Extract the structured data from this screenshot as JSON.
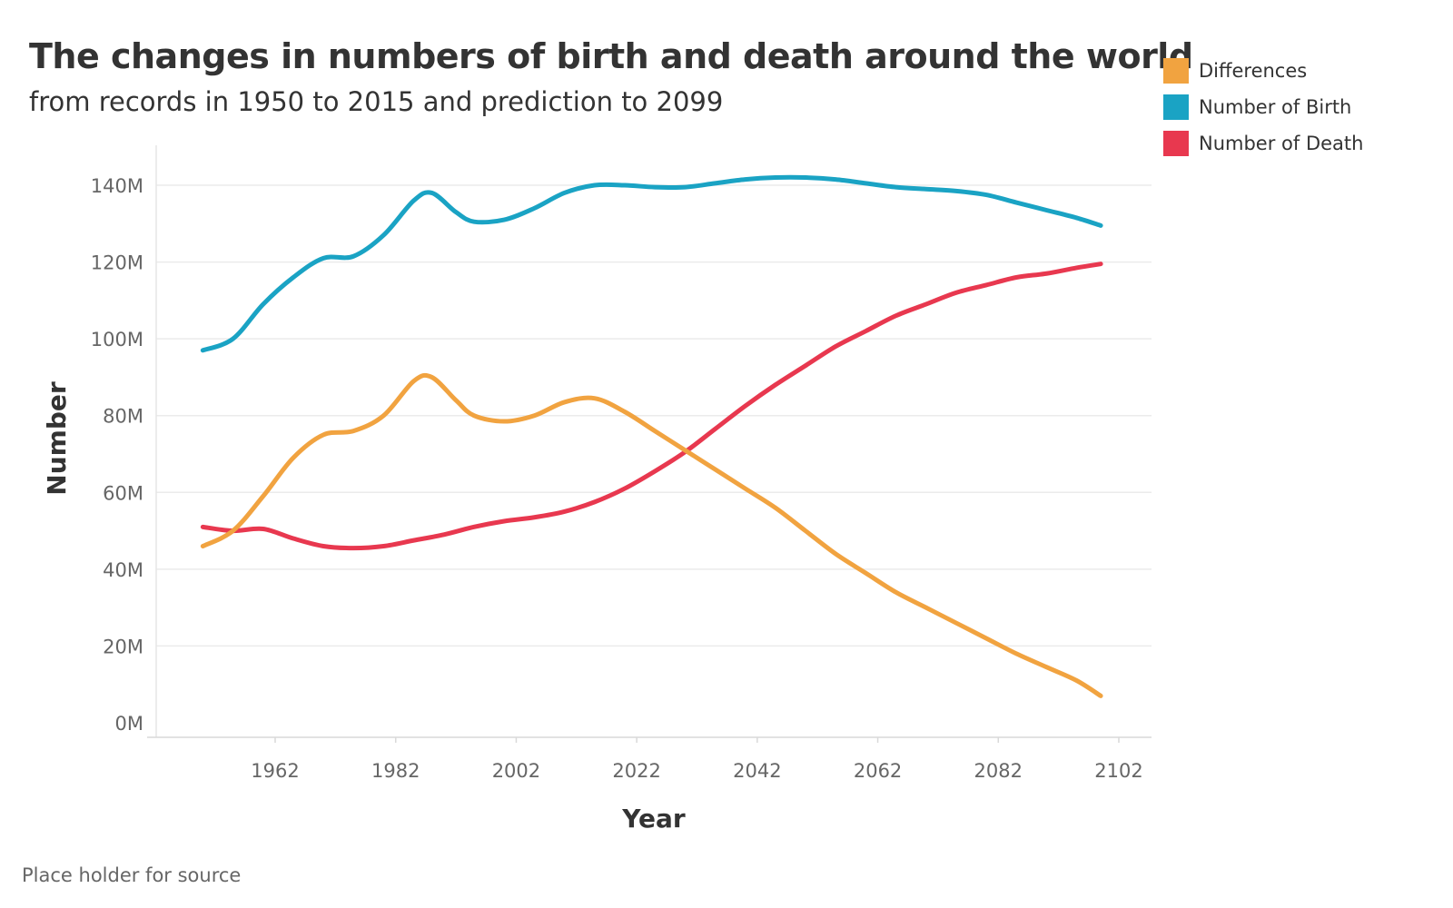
{
  "chart_data": {
    "type": "line",
    "title": "The changes in numbers of birth and death around the world",
    "subtitle": "from records in 1950 to 2015 and prediction to 2099",
    "xlabel": "Year",
    "ylabel": "Number",
    "source": "Place holder for source",
    "xlim": [
      1947,
      2104
    ],
    "ylim": [
      0,
      150000000
    ],
    "x_ticks": [
      1962,
      1982,
      2002,
      2022,
      2042,
      2062,
      2082,
      2102
    ],
    "y_ticks": [
      {
        "value": 0,
        "label": "0M"
      },
      {
        "value": 20000000,
        "label": "20M"
      },
      {
        "value": 40000000,
        "label": "40M"
      },
      {
        "value": 60000000,
        "label": "60M"
      },
      {
        "value": 80000000,
        "label": "80M"
      },
      {
        "value": 100000000,
        "label": "100M"
      },
      {
        "value": 120000000,
        "label": "120M"
      },
      {
        "value": 140000000,
        "label": "140M"
      }
    ],
    "grid": "horizontal",
    "legend_position": "top-right",
    "series": [
      {
        "name": "Differences",
        "color": "#f1a340",
        "points": [
          [
            1950,
            46000000
          ],
          [
            1955,
            50000000
          ],
          [
            1960,
            59000000
          ],
          [
            1965,
            69000000
          ],
          [
            1970,
            75000000
          ],
          [
            1975,
            76000000
          ],
          [
            1980,
            80000000
          ],
          [
            1985,
            89000000
          ],
          [
            1988,
            90000000
          ],
          [
            1992,
            84000000
          ],
          [
            1995,
            80000000
          ],
          [
            2000,
            78500000
          ],
          [
            2005,
            80000000
          ],
          [
            2010,
            83500000
          ],
          [
            2015,
            84500000
          ],
          [
            2020,
            81000000
          ],
          [
            2025,
            76000000
          ],
          [
            2030,
            71000000
          ],
          [
            2035,
            66000000
          ],
          [
            2040,
            61000000
          ],
          [
            2045,
            56000000
          ],
          [
            2050,
            50000000
          ],
          [
            2055,
            44000000
          ],
          [
            2060,
            39000000
          ],
          [
            2065,
            34000000
          ],
          [
            2070,
            30000000
          ],
          [
            2075,
            26000000
          ],
          [
            2080,
            22000000
          ],
          [
            2085,
            18000000
          ],
          [
            2090,
            14500000
          ],
          [
            2095,
            11000000
          ],
          [
            2099,
            7000000
          ]
        ]
      },
      {
        "name": "Number of Birth",
        "color": "#1aa3c4",
        "points": [
          [
            1950,
            97000000
          ],
          [
            1955,
            100000000
          ],
          [
            1960,
            109000000
          ],
          [
            1965,
            116000000
          ],
          [
            1970,
            121000000
          ],
          [
            1975,
            121500000
          ],
          [
            1980,
            127000000
          ],
          [
            1985,
            136000000
          ],
          [
            1988,
            138000000
          ],
          [
            1992,
            133000000
          ],
          [
            1995,
            130500000
          ],
          [
            2000,
            131000000
          ],
          [
            2005,
            134000000
          ],
          [
            2010,
            138000000
          ],
          [
            2015,
            140000000
          ],
          [
            2020,
            140000000
          ],
          [
            2025,
            139500000
          ],
          [
            2030,
            139500000
          ],
          [
            2035,
            140500000
          ],
          [
            2040,
            141500000
          ],
          [
            2045,
            142000000
          ],
          [
            2050,
            142000000
          ],
          [
            2055,
            141500000
          ],
          [
            2060,
            140500000
          ],
          [
            2065,
            139500000
          ],
          [
            2070,
            139000000
          ],
          [
            2075,
            138500000
          ],
          [
            2080,
            137500000
          ],
          [
            2085,
            135500000
          ],
          [
            2090,
            133500000
          ],
          [
            2095,
            131500000
          ],
          [
            2099,
            129500000
          ]
        ]
      },
      {
        "name": "Number of Death",
        "color": "#e8384f",
        "points": [
          [
            1950,
            51000000
          ],
          [
            1955,
            50000000
          ],
          [
            1960,
            50500000
          ],
          [
            1965,
            48000000
          ],
          [
            1970,
            46000000
          ],
          [
            1975,
            45500000
          ],
          [
            1980,
            46000000
          ],
          [
            1985,
            47500000
          ],
          [
            1990,
            49000000
          ],
          [
            1995,
            51000000
          ],
          [
            2000,
            52500000
          ],
          [
            2005,
            53500000
          ],
          [
            2010,
            55000000
          ],
          [
            2015,
            57500000
          ],
          [
            2020,
            61000000
          ],
          [
            2025,
            65500000
          ],
          [
            2030,
            70500000
          ],
          [
            2035,
            76500000
          ],
          [
            2040,
            82500000
          ],
          [
            2045,
            88000000
          ],
          [
            2050,
            93000000
          ],
          [
            2055,
            98000000
          ],
          [
            2060,
            102000000
          ],
          [
            2065,
            106000000
          ],
          [
            2070,
            109000000
          ],
          [
            2075,
            112000000
          ],
          [
            2080,
            114000000
          ],
          [
            2085,
            116000000
          ],
          [
            2090,
            117000000
          ],
          [
            2095,
            118500000
          ],
          [
            2099,
            119500000
          ]
        ]
      }
    ]
  }
}
